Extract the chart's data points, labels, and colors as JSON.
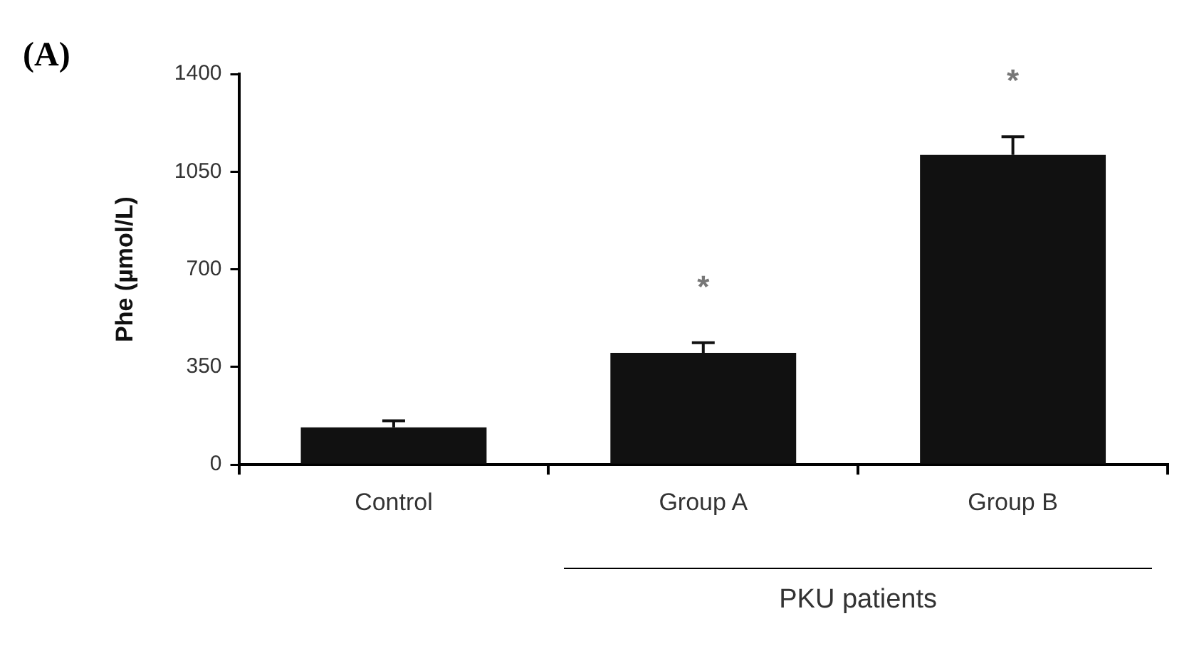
{
  "chart_data": {
    "type": "bar",
    "ylabel": "Phe (µmol/L)",
    "categories": [
      "Control",
      "Group A",
      "Group B"
    ],
    "values": [
      134,
      401,
      1110
    ],
    "errors": [
      [
        134,
        157
      ],
      [
        401,
        437
      ],
      [
        1110,
        1175
      ]
    ],
    "color": "#111111",
    "ylim": [
      0,
      1400
    ],
    "yticks": [
      0,
      350,
      700,
      1050,
      1400
    ],
    "grid": false,
    "legend": false,
    "annotations": [
      "(A)",
      "PKU patients",
      "*",
      "*"
    ]
  }
}
